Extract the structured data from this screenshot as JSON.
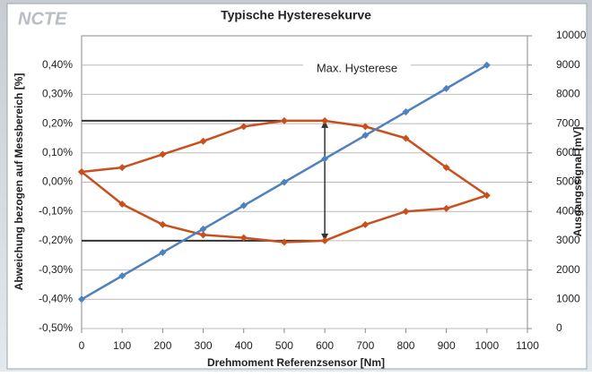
{
  "chart_data": {
    "type": "line",
    "logo": "NCTE",
    "title": "Typische Hysteresekurve",
    "x_label": "Drehmoment Referenzsensor [Nm]",
    "y_label": "Abweichung  bezogen  auf Messbereich [%]",
    "y2_label": "Ausgangssignal [mV]",
    "annotation": "Max. Hysterese",
    "xlim": [
      0,
      1100
    ],
    "xticks": [
      0,
      100,
      200,
      300,
      400,
      500,
      600,
      700,
      800,
      900,
      1000,
      1100
    ],
    "ylim": [
      -0.5,
      0.5
    ],
    "yticks": [
      {
        "value": -0.5,
        "label": "-0,50%"
      },
      {
        "value": -0.4,
        "label": "-0,40%"
      },
      {
        "value": -0.3,
        "label": "-0,30%"
      },
      {
        "value": -0.2,
        "label": "-0,20%"
      },
      {
        "value": -0.1,
        "label": "-0,10%"
      },
      {
        "value": 0,
        "label": "0,00%"
      },
      {
        "value": 0.1,
        "label": "0,10%"
      },
      {
        "value": 0.2,
        "label": "0,20%"
      },
      {
        "value": 0.3,
        "label": "0,30%"
      },
      {
        "value": 0.4,
        "label": "0,40%"
      }
    ],
    "y2lim": [
      0,
      10000
    ],
    "y2ticks": [
      0,
      1000,
      2000,
      3000,
      4000,
      5000,
      6000,
      7000,
      8000,
      9000,
      10000
    ],
    "grid": true,
    "series": [
      {
        "color": "#c8501e",
        "axis": "y",
        "x": [
          0,
          100,
          200,
          300,
          400,
          500,
          600,
          700,
          800,
          900,
          1000,
          900,
          800,
          700,
          600,
          500,
          400,
          300,
          200,
          100,
          0
        ],
        "values": [
          0.035,
          0.05,
          0.095,
          0.14,
          0.19,
          0.21,
          0.21,
          0.19,
          0.15,
          0.05,
          -0.045,
          -0.09,
          -0.1,
          -0.145,
          -0.2,
          -0.205,
          -0.19,
          -0.18,
          -0.145,
          -0.075,
          0.035
        ]
      },
      {
        "color": "#4f81bd",
        "axis": "y2",
        "x": [
          0,
          100,
          200,
          300,
          400,
          500,
          600,
          700,
          800,
          900,
          1000
        ],
        "values": [
          1000,
          1800,
          2600,
          3400,
          4200,
          5000,
          5800,
          6600,
          7400,
          8200,
          9000
        ]
      }
    ]
  }
}
